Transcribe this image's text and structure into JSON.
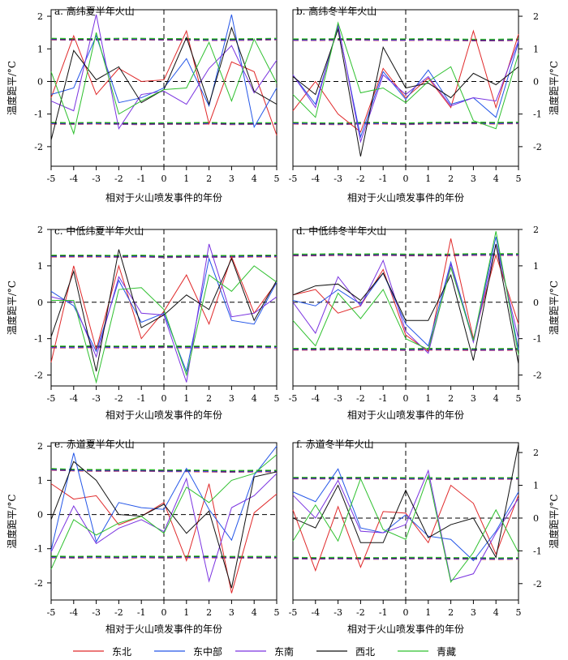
{
  "figure": {
    "legend": {
      "placement": "bottom",
      "entries": [
        {
          "name": "东北",
          "color": "#e0292a"
        },
        {
          "name": "东中部",
          "color": "#2456e8"
        },
        {
          "name": "东南",
          "color": "#7a33e0"
        },
        {
          "name": "西北",
          "color": "#111111"
        },
        {
          "name": "青藏",
          "color": "#2ec02e"
        }
      ]
    },
    "colors": {
      "东北": "#e0292a",
      "东中部": "#2456e8",
      "东南": "#7a33e0",
      "西北": "#111111",
      "青藏": "#2ec02e"
    }
  },
  "chart_data": [
    {
      "type": "line",
      "title": "a. 高纬夏半年火山",
      "xlabel": "相对于火山喷发事件的年份",
      "ylabel": "温度距平/°C",
      "x": [
        -5,
        -4,
        -3,
        -2,
        -1,
        0,
        1,
        2,
        3,
        4,
        5
      ],
      "xlim": [
        -5,
        5
      ],
      "ylim": [
        -2.6,
        2.2
      ],
      "yticks": [
        -2,
        -1,
        0,
        1,
        2
      ],
      "ylabel_side": "left",
      "series": [
        {
          "name": "东北",
          "values": [
            -0.5,
            1.4,
            -0.4,
            0.4,
            0.0,
            0.05,
            1.55,
            -1.3,
            0.6,
            0.3,
            -1.65
          ]
        },
        {
          "name": "东中部",
          "values": [
            -0.4,
            -0.2,
            1.4,
            -0.65,
            -0.5,
            -0.2,
            0.7,
            -0.75,
            2.05,
            -1.4,
            -0.2
          ]
        },
        {
          "name": "东南",
          "values": [
            -0.6,
            -0.9,
            2.05,
            -1.45,
            -0.4,
            -0.3,
            -0.7,
            0.4,
            1.1,
            -0.35,
            0.65
          ]
        },
        {
          "name": "西北",
          "values": [
            -1.8,
            0.95,
            0.05,
            0.45,
            -0.65,
            -0.25,
            1.35,
            -0.7,
            1.65,
            -0.3,
            -0.7
          ]
        },
        {
          "name": "青藏",
          "values": [
            0.3,
            -1.6,
            1.5,
            -1.0,
            -0.6,
            -0.25,
            -0.2,
            1.2,
            -0.6,
            1.3,
            -0.05
          ]
        }
      ],
      "significance": {
        "upper": [
          1.3,
          1.29,
          1.29,
          1.3,
          1.3,
          1.29,
          1.29,
          1.28,
          1.28,
          1.29,
          1.3
        ],
        "lower": [
          -1.28,
          -1.29,
          -1.28,
          -1.29,
          -1.3,
          -1.29,
          -1.29,
          -1.28,
          -1.3,
          -1.29,
          -1.29
        ]
      }
    },
    {
      "type": "line",
      "title": "b. 高纬冬半年火山",
      "xlabel": "相对于火山喷发事件的年份",
      "ylabel": "温度距平/°C",
      "x": [
        -5,
        -4,
        -3,
        -2,
        -1,
        0,
        1,
        2,
        3,
        4,
        5
      ],
      "xlim": [
        -5,
        5
      ],
      "ylim": [
        -2.6,
        2.2
      ],
      "yticks": [
        -2,
        -1,
        0,
        1,
        2
      ],
      "ylabel_side": "right",
      "series": [
        {
          "name": "东北",
          "values": [
            -0.9,
            0.0,
            -1.0,
            -1.55,
            0.4,
            -0.5,
            0.1,
            -0.8,
            1.55,
            -0.8,
            1.45
          ]
        },
        {
          "name": "东中部",
          "values": [
            0.2,
            -0.7,
            1.7,
            -1.7,
            0.3,
            -0.55,
            0.35,
            -0.7,
            -0.5,
            -1.1,
            1.2
          ]
        },
        {
          "name": "东南",
          "values": [
            0.2,
            -0.8,
            1.75,
            -1.85,
            0.2,
            -0.4,
            0.15,
            -0.75,
            -0.5,
            -0.6,
            1.25
          ]
        },
        {
          "name": "西北",
          "values": [
            0.15,
            -0.4,
            1.6,
            -2.3,
            1.05,
            -0.2,
            -0.05,
            -0.5,
            0.25,
            -0.1,
            0.45
          ]
        },
        {
          "name": "青藏",
          "values": [
            -0.4,
            -1.1,
            1.8,
            -0.35,
            -0.2,
            -0.65,
            0.0,
            0.45,
            -1.2,
            -1.45,
            0.85
          ]
        }
      ],
      "significance": {
        "upper": [
          1.28,
          1.28,
          1.29,
          1.29,
          1.28,
          1.28,
          1.29,
          1.28,
          1.27,
          1.27,
          1.28
        ],
        "lower": [
          -1.28,
          -1.29,
          -1.3,
          -1.28,
          -1.28,
          -1.3,
          -1.28,
          -1.27,
          -1.27,
          -1.28,
          -1.27
        ]
      }
    },
    {
      "type": "line",
      "title": "c. 中低纬夏半年火山",
      "xlabel": "相对于火山喷发事件的年份",
      "ylabel": "温度距平/°C",
      "x": [
        -5,
        -4,
        -3,
        -2,
        -1,
        0,
        1,
        2,
        3,
        4,
        5
      ],
      "xlim": [
        -5,
        5
      ],
      "ylim": [
        -2.3,
        2.0
      ],
      "yticks": [
        -2,
        -1,
        0,
        1,
        2
      ],
      "ylabel_side": "left",
      "series": [
        {
          "name": "东北",
          "values": [
            -1.65,
            1.0,
            -1.3,
            1.0,
            -1.0,
            -0.25,
            0.75,
            -0.6,
            1.25,
            -0.3,
            0.55
          ]
        },
        {
          "name": "东中部",
          "values": [
            0.3,
            -0.1,
            -1.35,
            0.6,
            -0.55,
            -0.3,
            -1.9,
            1.2,
            -0.5,
            -0.6,
            0.55
          ]
        },
        {
          "name": "东南",
          "values": [
            0.15,
            0.0,
            -1.5,
            0.7,
            -0.3,
            -0.35,
            -2.2,
            1.6,
            -0.4,
            -0.3,
            0.15
          ]
        },
        {
          "name": "西北",
          "values": [
            -0.95,
            0.85,
            -1.9,
            1.45,
            -0.7,
            -0.35,
            0.2,
            -0.2,
            1.2,
            -0.5,
            0.6
          ]
        },
        {
          "name": "青藏",
          "values": [
            0.05,
            0.05,
            -2.2,
            0.35,
            0.4,
            -0.2,
            -2.0,
            0.75,
            0.3,
            1.0,
            0.55
          ]
        }
      ],
      "significance": {
        "upper": [
          1.27,
          1.27,
          1.27,
          1.26,
          1.27,
          1.25,
          1.26,
          1.26,
          1.26,
          1.27,
          1.27
        ],
        "lower": [
          -1.23,
          -1.23,
          -1.22,
          -1.23,
          -1.23,
          -1.22,
          -1.23,
          -1.23,
          -1.22,
          -1.22,
          -1.23
        ]
      }
    },
    {
      "type": "line",
      "title": "d. 中低纬冬半年火山",
      "xlabel": "相对于火山喷发事件的年份",
      "ylabel": "温度距平/°C",
      "x": [
        -5,
        -4,
        -3,
        -2,
        -1,
        0,
        1,
        2,
        3,
        4,
        5
      ],
      "xlim": [
        -5,
        5
      ],
      "ylim": [
        -2.3,
        2.0
      ],
      "yticks": [
        -2,
        -1,
        0,
        1,
        2
      ],
      "ylabel_side": "right",
      "series": [
        {
          "name": "东北",
          "values": [
            0.2,
            0.35,
            -0.3,
            -0.1,
            0.9,
            -0.9,
            -1.35,
            1.75,
            -1.0,
            1.3,
            -0.6
          ]
        },
        {
          "name": "东中部",
          "values": [
            0.05,
            -0.1,
            0.35,
            -0.05,
            0.8,
            -0.6,
            -1.2,
            1.1,
            -1.05,
            1.8,
            -1.3
          ]
        },
        {
          "name": "东南",
          "values": [
            0.0,
            -0.85,
            0.7,
            -0.1,
            1.15,
            -0.8,
            -1.4,
            1.05,
            -1.1,
            1.6,
            -1.0
          ]
        },
        {
          "name": "西北",
          "values": [
            0.2,
            0.45,
            0.5,
            0.05,
            0.8,
            -0.5,
            -0.5,
            0.75,
            -1.6,
            1.6,
            -1.7
          ]
        },
        {
          "name": "青藏",
          "values": [
            -0.5,
            -1.2,
            0.25,
            -0.45,
            0.35,
            -1.0,
            -1.3,
            0.95,
            -1.05,
            1.95,
            -1.45
          ]
        }
      ],
      "significance": {
        "upper": [
          1.3,
          1.3,
          1.31,
          1.3,
          1.31,
          1.3,
          1.3,
          1.3,
          1.31,
          1.31,
          1.31
        ],
        "lower": [
          -1.29,
          -1.29,
          -1.28,
          -1.29,
          -1.29,
          -1.3,
          -1.29,
          -1.29,
          -1.3,
          -1.3,
          -1.29
        ]
      }
    },
    {
      "type": "line",
      "title": "e. 赤道夏半年火山",
      "xlabel": "相对于火山喷发事件的年份",
      "ylabel": "温度距平/°C",
      "x": [
        -5,
        -4,
        -3,
        -2,
        -1,
        0,
        1,
        2,
        3,
        4,
        5
      ],
      "xlim": [
        -5,
        5
      ],
      "ylim": [
        -2.5,
        2.1
      ],
      "yticks": [
        -2,
        -1,
        0,
        1,
        2
      ],
      "ylabel_side": "left",
      "series": [
        {
          "name": "东北",
          "values": [
            0.9,
            0.45,
            0.55,
            -0.3,
            -0.05,
            0.35,
            -1.35,
            0.9,
            -2.3,
            0.05,
            0.6
          ]
        },
        {
          "name": "东中部",
          "values": [
            -1.05,
            1.8,
            -0.8,
            0.35,
            0.2,
            0.15,
            1.35,
            0.15,
            -0.75,
            1.15,
            2.0
          ]
        },
        {
          "name": "东南",
          "values": [
            -1.1,
            0.25,
            -0.85,
            -0.4,
            -0.15,
            -0.5,
            1.05,
            -1.95,
            0.2,
            0.55,
            1.2
          ]
        },
        {
          "name": "西北",
          "values": [
            -0.15,
            1.55,
            1.0,
            0.0,
            -0.05,
            0.3,
            -0.55,
            0.1,
            -2.15,
            1.1,
            1.25
          ]
        },
        {
          "name": "青藏",
          "values": [
            -1.6,
            -0.15,
            -0.6,
            -0.25,
            -0.05,
            -0.55,
            0.8,
            0.35,
            1.0,
            1.2,
            1.75
          ]
        }
      ],
      "significance": {
        "upper": [
          1.32,
          1.3,
          1.29,
          1.29,
          1.29,
          1.28,
          1.28,
          1.27,
          1.26,
          1.27,
          1.27
        ],
        "lower": [
          -1.24,
          -1.25,
          -1.24,
          -1.25,
          -1.24,
          -1.25,
          -1.24,
          -1.24,
          -1.25,
          -1.25,
          -1.25
        ]
      }
    },
    {
      "type": "line",
      "title": "f. 赤道冬半年火山",
      "xlabel": "相对于火山喷发事件的年份",
      "ylabel": "温度距平/°C",
      "x": [
        -5,
        -4,
        -3,
        -2,
        -1,
        0,
        1,
        2,
        3,
        4,
        5
      ],
      "xlim": [
        -5,
        5
      ],
      "ylim": [
        -2.5,
        2.3
      ],
      "yticks": [
        -2,
        -1,
        0,
        1,
        2
      ],
      "ylabel_side": "right",
      "series": [
        {
          "name": "东北",
          "values": [
            0.25,
            -1.6,
            0.35,
            -1.5,
            0.2,
            0.15,
            -0.75,
            1.0,
            0.45,
            -1.1,
            0.7
          ]
        },
        {
          "name": "东中部",
          "values": [
            0.8,
            0.5,
            1.5,
            -0.3,
            -0.45,
            0.1,
            -0.55,
            -0.65,
            -1.3,
            -0.4,
            0.8
          ]
        },
        {
          "name": "东南",
          "values": [
            0.7,
            0.0,
            1.15,
            -0.4,
            -0.45,
            -0.2,
            1.45,
            -1.9,
            -1.7,
            -0.45,
            0.6
          ]
        },
        {
          "name": "西北",
          "values": [
            0.0,
            -0.3,
            1.0,
            -0.75,
            -0.75,
            0.85,
            -0.6,
            -0.2,
            0.0,
            -1.2,
            2.25
          ]
        },
        {
          "name": "青藏",
          "values": [
            -0.7,
            0.4,
            -0.7,
            1.2,
            -0.35,
            -0.65,
            1.3,
            -1.95,
            -1.05,
            0.25,
            -1.05
          ]
        }
      ],
      "significance": {
        "upper": [
          1.22,
          1.22,
          1.22,
          1.22,
          1.22,
          1.21,
          1.21,
          1.2,
          1.21,
          1.21,
          1.21
        ],
        "lower": [
          -1.22,
          -1.23,
          -1.22,
          -1.23,
          -1.23,
          -1.22,
          -1.22,
          -1.23,
          -1.23,
          -1.24,
          -1.23
        ]
      }
    }
  ]
}
